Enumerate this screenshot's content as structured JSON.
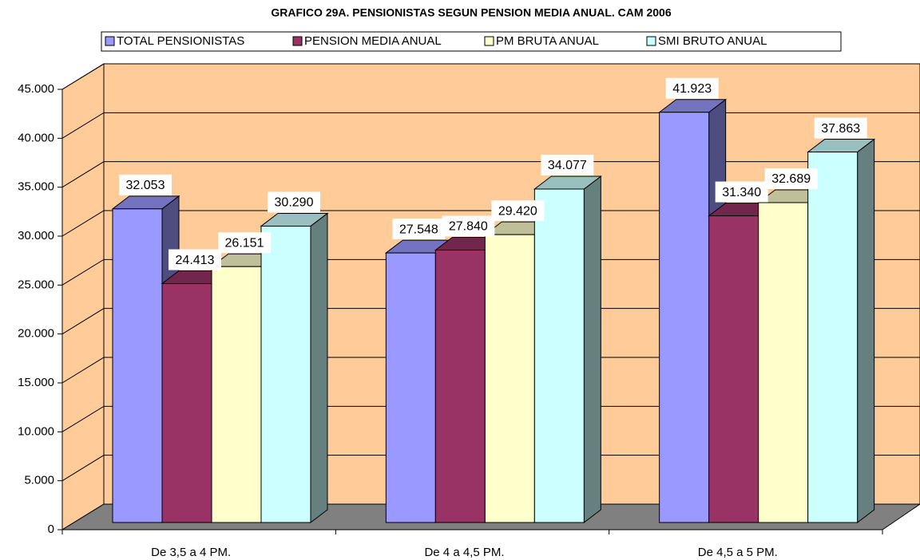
{
  "chart_data": {
    "type": "bar3d",
    "title": "GRAFICO 29A. PENSIONISTAS SEGUN PENSION MEDIA ANUAL. CAM 2006",
    "categories": [
      "De 3,5 a 4 PM.",
      "De 4 a 4,5 PM.",
      "De 4,5 a 5 PM."
    ],
    "series": [
      {
        "name": "TOTAL PENSIONISTAS",
        "color": "#9999ff",
        "values": [
          32053,
          27548,
          41923
        ],
        "value_labels": [
          "32.053",
          "27.548",
          "41.923"
        ]
      },
      {
        "name": "PENSION MEDIA ANUAL",
        "color": "#993366",
        "values": [
          24413,
          27840,
          31340
        ],
        "value_labels": [
          "24.413",
          "27.840",
          "31.340"
        ]
      },
      {
        "name": "PM BRUTA ANUAL",
        "color": "#ffffcc",
        "values": [
          26151,
          29420,
          32689
        ],
        "value_labels": [
          "26.151",
          "29.420",
          "32.689"
        ]
      },
      {
        "name": "SMI BRUTO ANUAL",
        "color": "#ccffff",
        "values": [
          30290,
          34077,
          37863
        ],
        "value_labels": [
          "30.290",
          "34.077",
          "37.863"
        ]
      }
    ],
    "ylim": [
      0,
      45000
    ],
    "yticks": [
      0,
      {
        "value": 5000,
        "label": "5.000"
      },
      {
        "value": 10000,
        "label": "10.000"
      },
      {
        "value": 15000,
        "label": "15.000"
      },
      {
        "value": 20000,
        "label": "20.000"
      },
      {
        "value": 25000,
        "label": "25.000"
      },
      {
        "value": 30000,
        "label": "30.000"
      },
      {
        "value": 35000,
        "label": "35.000"
      },
      {
        "value": 40000,
        "label": "40.000"
      },
      {
        "value": 45000,
        "label": "45.000"
      }
    ],
    "grid": true,
    "legend": "top"
  }
}
